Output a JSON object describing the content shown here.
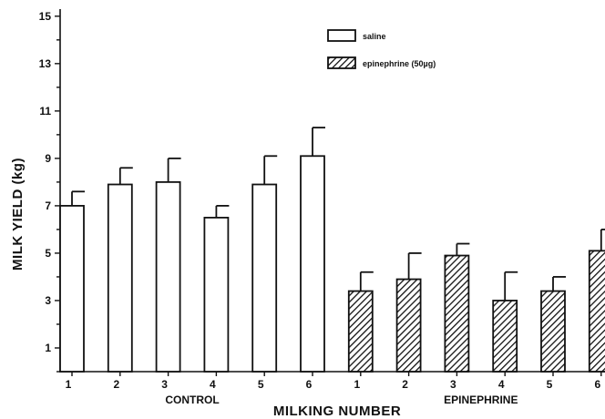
{
  "chart_data": {
    "type": "bar",
    "xlabel": "MILKING NUMBER",
    "ylabel": "MILK YIELD (kg)",
    "ylim": [
      0,
      15.3
    ],
    "yticks": [
      1,
      3,
      5,
      7,
      9,
      11,
      13,
      15
    ],
    "legend_position": "top-right",
    "groups": [
      {
        "label": "CONTROL",
        "series": "saline",
        "categories": [
          "1",
          "2",
          "3",
          "4",
          "5",
          "6"
        ],
        "values": [
          7.0,
          7.9,
          8.0,
          6.5,
          7.9,
          9.1
        ],
        "errors": [
          0.6,
          0.7,
          1.0,
          0.5,
          1.2,
          1.2
        ]
      },
      {
        "label": "EPINEPHRINE",
        "series": "epinephrine (50µg)",
        "categories": [
          "1",
          "2",
          "3",
          "4",
          "5",
          "6"
        ],
        "values": [
          3.4,
          3.9,
          4.9,
          3.0,
          3.4,
          5.1
        ],
        "errors": [
          0.8,
          1.1,
          0.5,
          1.2,
          0.6,
          0.9
        ]
      }
    ],
    "legend": [
      {
        "name": "saline",
        "fill": "open",
        "color": "#ffffff"
      },
      {
        "name": "epinephrine (50µg)",
        "fill": "hatched",
        "color": "#111111"
      }
    ]
  }
}
